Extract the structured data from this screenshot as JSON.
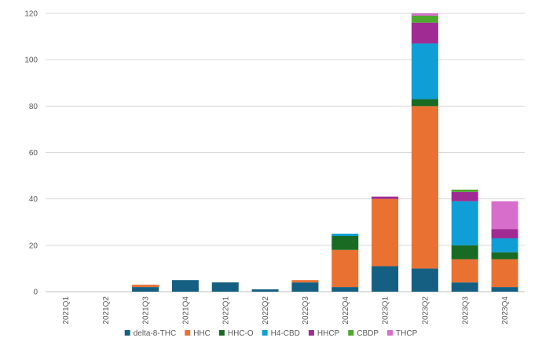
{
  "chart_data": {
    "type": "bar",
    "stacked": true,
    "title": "",
    "xlabel": "",
    "ylabel": "",
    "ylim": [
      0,
      120
    ],
    "yticks": [
      0,
      20,
      40,
      60,
      80,
      100,
      120
    ],
    "grid": true,
    "legend_position": "bottom",
    "categories": [
      "2021Q1",
      "2021Q2",
      "2021Q3",
      "2021Q4",
      "2022Q1",
      "2022Q2",
      "2022Q3",
      "2022Q4",
      "2023Q1",
      "2023Q2",
      "2023Q3",
      "2023Q4"
    ],
    "series": [
      {
        "name": "delta-8-THC",
        "color": "#156082",
        "values": [
          0,
          0,
          2,
          5,
          4,
          1,
          4,
          2,
          11,
          10,
          4,
          2
        ]
      },
      {
        "name": "HHC",
        "color": "#E97132",
        "values": [
          0,
          0,
          1,
          0,
          0,
          0,
          1,
          16,
          29,
          70,
          10,
          12
        ]
      },
      {
        "name": "HHC-O",
        "color": "#196B24",
        "values": [
          0,
          0,
          0,
          0,
          0,
          0,
          0,
          6,
          0,
          3,
          6,
          3
        ]
      },
      {
        "name": "H4-CBD",
        "color": "#0F9ED5",
        "values": [
          0,
          0,
          0,
          0,
          0,
          0,
          0,
          1,
          0,
          24,
          19,
          6
        ]
      },
      {
        "name": "HHCP",
        "color": "#A02B93",
        "values": [
          0,
          0,
          0,
          0,
          0,
          0,
          0,
          0,
          1,
          9,
          4,
          4
        ]
      },
      {
        "name": "CBDP",
        "color": "#4EA72E",
        "values": [
          0,
          0,
          0,
          0,
          0,
          0,
          0,
          0,
          0,
          3,
          1,
          0
        ]
      },
      {
        "name": "THCP",
        "color": "#D86ECC",
        "values": [
          0,
          0,
          0,
          0,
          0,
          0,
          0,
          0,
          0,
          1,
          0,
          12
        ]
      }
    ]
  }
}
